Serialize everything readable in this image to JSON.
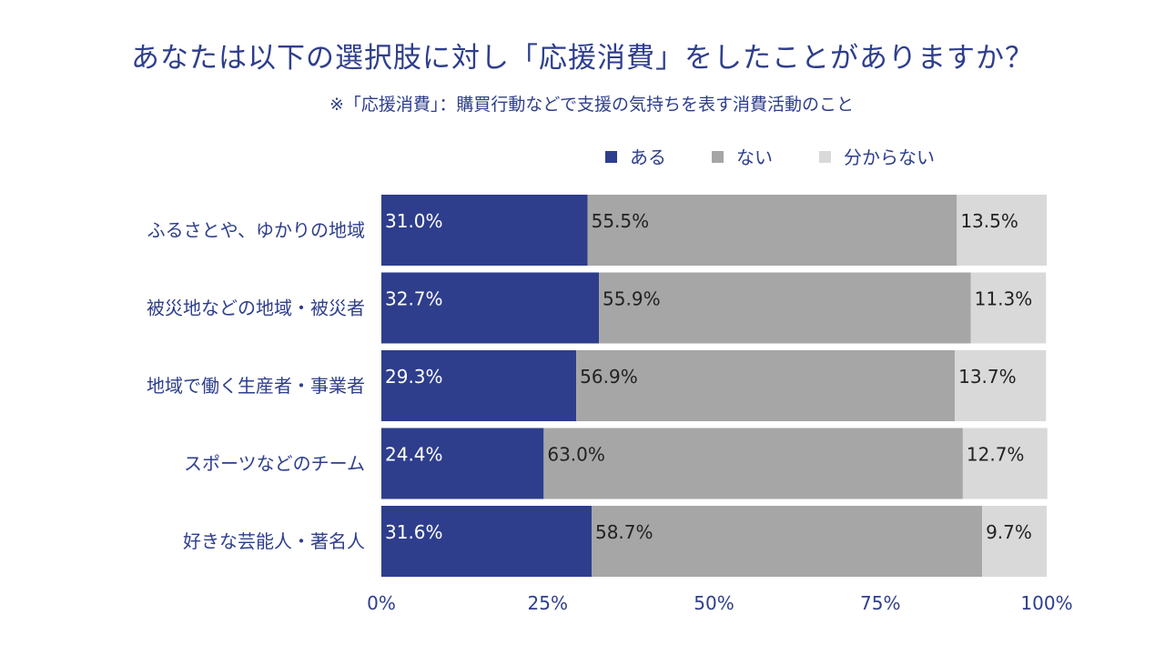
{
  "title": "あなたは以下の選択肢に対し「応援消費」をしたことがありますか？",
  "subtitle": "※「応援消費」：購買行動などで支援の気持ちを表す消費活動のこと",
  "colors": {
    "title": "#2e3e8c",
    "label": "#2e3e8c",
    "text": "#333333"
  },
  "chart_data": {
    "type": "bar",
    "orientation": "horizontal",
    "stacked": true,
    "categories": [
      "ふるさとや、ゆかりの地域",
      "被災地などの地域・被災者",
      "地域で働く生産者・事業者",
      "スポーツなどのチーム",
      "好きな芸能人・著名人"
    ],
    "series": [
      {
        "name": "ある",
        "color": "#2e3e8c",
        "label_color": "#ffffff",
        "values": [
          31.0,
          32.7,
          29.3,
          24.4,
          31.6
        ],
        "labels": [
          "31.0%",
          "32.7%",
          "29.3%",
          "24.4%",
          "31.6%"
        ]
      },
      {
        "name": "ない",
        "color": "#a6a6a6",
        "label_color": "#222222",
        "values": [
          55.5,
          55.9,
          56.9,
          63.0,
          58.7
        ],
        "labels": [
          "55.5%",
          "55.9%",
          "56.9%",
          "63.0%",
          "58.7%"
        ]
      },
      {
        "name": "分からない",
        "color": "#d9d9d9",
        "label_color": "#222222",
        "values": [
          13.5,
          11.3,
          13.7,
          12.7,
          9.7
        ],
        "labels": [
          "13.5%",
          "11.3%",
          "13.7%",
          "12.7%",
          "9.7%"
        ]
      }
    ],
    "x_ticks": [
      0,
      25,
      50,
      75,
      100
    ],
    "x_tick_labels": [
      "0%",
      "25%",
      "50%",
      "75%",
      "100%"
    ],
    "xlim": [
      0,
      100
    ],
    "legend_position": "top-right"
  }
}
